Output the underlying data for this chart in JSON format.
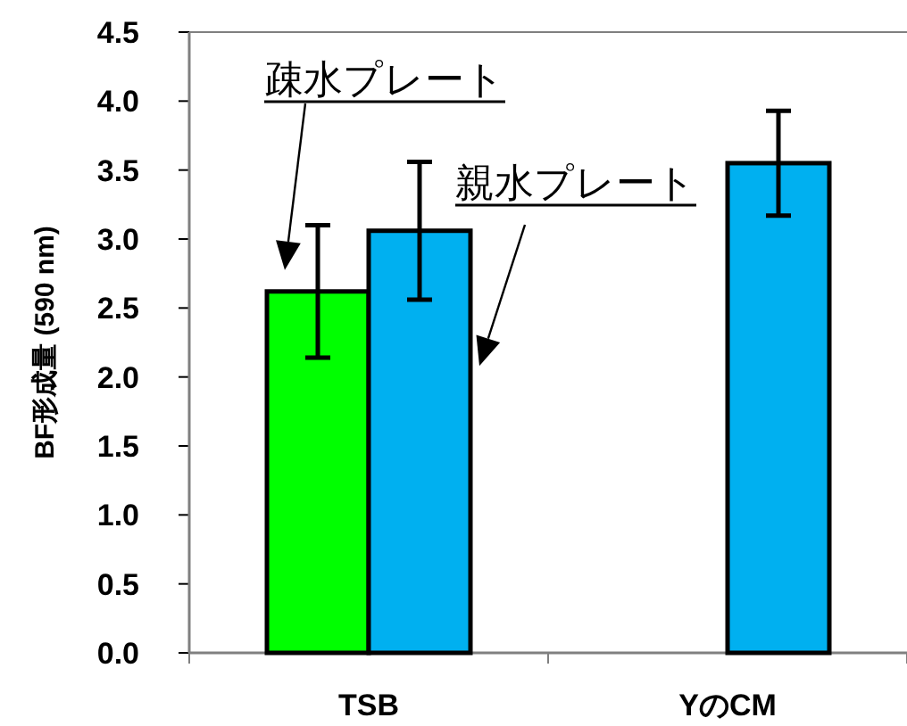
{
  "chart_data": {
    "type": "bar",
    "ylabel": "BF形成量 (590 nm)",
    "categories": [
      "TSB",
      "YのCM"
    ],
    "series": [
      {
        "color": "#00ff00",
        "values": [
          2.62,
          0
        ],
        "errors": [
          0.48,
          null
        ]
      },
      {
        "color": "#00b0f0",
        "values": [
          3.06,
          3.55
        ],
        "errors": [
          0.5,
          0.38
        ]
      }
    ],
    "annotations": [
      "疎水プレート",
      "親水プレート"
    ],
    "ylim": [
      0,
      4.5
    ],
    "yticks": [
      {
        "value": 0,
        "label": "0.0"
      },
      {
        "value": 0.5,
        "label": "0.5"
      },
      {
        "value": 1,
        "label": "1.0"
      },
      {
        "value": 1.5,
        "label": "1.5"
      },
      {
        "value": 2,
        "label": "2.0"
      },
      {
        "value": 2.5,
        "label": "2.5"
      },
      {
        "value": 3,
        "label": "3.0"
      },
      {
        "value": 3.5,
        "label": "3.5"
      },
      {
        "value": 4,
        "label": "4.0"
      },
      {
        "value": 4.5,
        "label": "4.5"
      }
    ],
    "grid": false
  }
}
